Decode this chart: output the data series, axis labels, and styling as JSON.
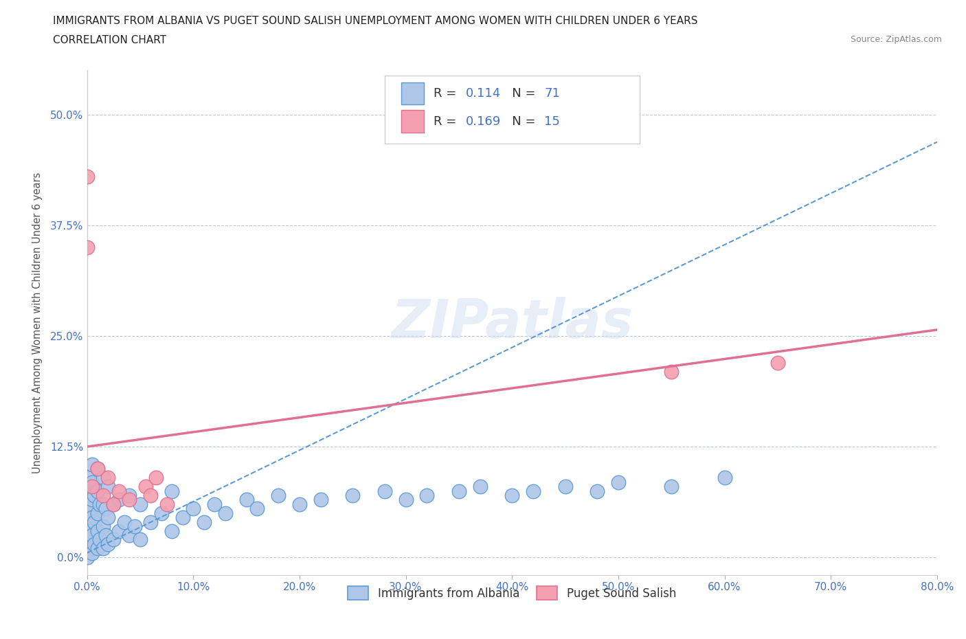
{
  "title_line1": "IMMIGRANTS FROM ALBANIA VS PUGET SOUND SALISH UNEMPLOYMENT AMONG WOMEN WITH CHILDREN UNDER 6 YEARS",
  "title_line2": "CORRELATION CHART",
  "source_text": "Source: ZipAtlas.com",
  "ylabel": "Unemployment Among Women with Children Under 6 years",
  "xlim": [
    0.0,
    0.8
  ],
  "ylim": [
    -0.02,
    0.55
  ],
  "xticks": [
    0.0,
    0.1,
    0.2,
    0.3,
    0.4,
    0.5,
    0.6,
    0.7,
    0.8
  ],
  "xticklabels": [
    "0.0%",
    "10.0%",
    "20.0%",
    "30.0%",
    "40.0%",
    "50.0%",
    "60.0%",
    "70.0%",
    "80.0%"
  ],
  "yticks": [
    0.0,
    0.125,
    0.25,
    0.375,
    0.5
  ],
  "yticklabels": [
    "0.0%",
    "12.5%",
    "25.0%",
    "37.5%",
    "50.0%"
  ],
  "blue_color": "#aec6e8",
  "pink_color": "#f4a0b0",
  "blue_edge_color": "#5b9bd5",
  "pink_edge_color": "#e07090",
  "R_blue": 0.114,
  "N_blue": 71,
  "R_pink": 0.169,
  "N_pink": 15,
  "watermark": "ZIPatlas",
  "legend_label_blue": "Immigrants from Albania",
  "legend_label_pink": "Puget Sound Salish",
  "blue_scatter_x": [
    0.0,
    0.0,
    0.0,
    0.0,
    0.0,
    0.003,
    0.003,
    0.003,
    0.003,
    0.005,
    0.005,
    0.005,
    0.005,
    0.005,
    0.005,
    0.007,
    0.007,
    0.007,
    0.01,
    0.01,
    0.01,
    0.01,
    0.01,
    0.012,
    0.012,
    0.015,
    0.015,
    0.015,
    0.015,
    0.018,
    0.018,
    0.02,
    0.02,
    0.02,
    0.025,
    0.025,
    0.03,
    0.03,
    0.035,
    0.04,
    0.04,
    0.045,
    0.05,
    0.05,
    0.06,
    0.07,
    0.08,
    0.08,
    0.09,
    0.1,
    0.11,
    0.12,
    0.13,
    0.15,
    0.16,
    0.18,
    0.2,
    0.22,
    0.25,
    0.28,
    0.3,
    0.32,
    0.35,
    0.37,
    0.4,
    0.42,
    0.45,
    0.48,
    0.5,
    0.55,
    0.6
  ],
  "blue_scatter_y": [
    0.0,
    0.02,
    0.04,
    0.06,
    0.09,
    0.01,
    0.03,
    0.055,
    0.08,
    0.005,
    0.025,
    0.045,
    0.065,
    0.085,
    0.105,
    0.015,
    0.04,
    0.07,
    0.01,
    0.03,
    0.05,
    0.075,
    0.1,
    0.02,
    0.06,
    0.01,
    0.035,
    0.06,
    0.09,
    0.025,
    0.055,
    0.015,
    0.045,
    0.08,
    0.02,
    0.06,
    0.03,
    0.065,
    0.04,
    0.025,
    0.07,
    0.035,
    0.02,
    0.06,
    0.04,
    0.05,
    0.03,
    0.075,
    0.045,
    0.055,
    0.04,
    0.06,
    0.05,
    0.065,
    0.055,
    0.07,
    0.06,
    0.065,
    0.07,
    0.075,
    0.065,
    0.07,
    0.075,
    0.08,
    0.07,
    0.075,
    0.08,
    0.075,
    0.085,
    0.08,
    0.09
  ],
  "pink_scatter_x": [
    0.0,
    0.0,
    0.005,
    0.01,
    0.015,
    0.02,
    0.025,
    0.03,
    0.04,
    0.055,
    0.06,
    0.065,
    0.075,
    0.55,
    0.65
  ],
  "pink_scatter_y": [
    0.43,
    0.35,
    0.08,
    0.1,
    0.07,
    0.09,
    0.06,
    0.075,
    0.065,
    0.08,
    0.07,
    0.09,
    0.06,
    0.21,
    0.22
  ],
  "blue_line_slope": 0.58,
  "blue_line_intercept": 0.005,
  "pink_line_slope": 0.165,
  "pink_line_intercept": 0.125
}
